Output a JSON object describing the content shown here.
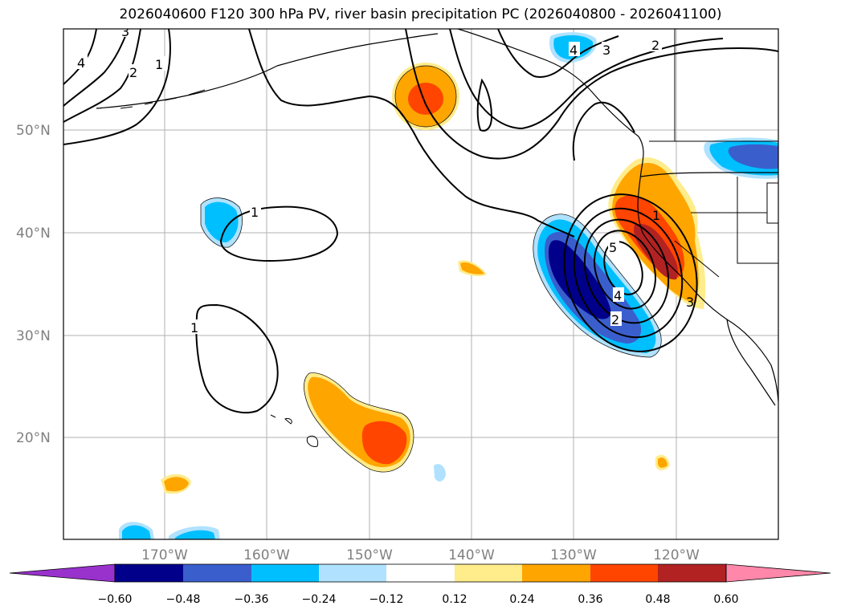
{
  "title": "2026040600 F120 300 hPa PV, river basin precipitation PC (2026040800 - 2026041100)",
  "axes": {
    "lat_labels": [
      "50°N",
      "40°N",
      "30°N",
      "20°N"
    ],
    "lon_labels": [
      "170°W",
      "160°W",
      "150°W",
      "140°W",
      "130°W",
      "120°W"
    ]
  },
  "colorbar": {
    "tick_labels": [
      "−0.60",
      "−0.48",
      "−0.36",
      "−0.24",
      "−0.12",
      "0.12",
      "0.24",
      "0.36",
      "0.48",
      "0.60"
    ],
    "colors": [
      "#9932cc",
      "#00008b",
      "#3a5fcd",
      "#00bfff",
      "#b0e2ff",
      "#ffffff",
      "#ffec8b",
      "#ffa500",
      "#ff4500",
      "#b22222",
      "#ff88aa"
    ]
  },
  "contour_labels": {
    "pv_1_central": "1",
    "pv_1_south": "1",
    "pv_2_nw": "2",
    "pv_1_nw": "1",
    "pv_3_nw": "3",
    "pv_4_nw": "4",
    "pv_4_alaska": "4",
    "pv_3_alaska": "3",
    "pv_2_alaska": "2",
    "pv_5_low": "5",
    "pv_4_low": "4",
    "pv_2_low": "2",
    "pv_1_coast": "1",
    "pv_3_coast": "3"
  }
}
